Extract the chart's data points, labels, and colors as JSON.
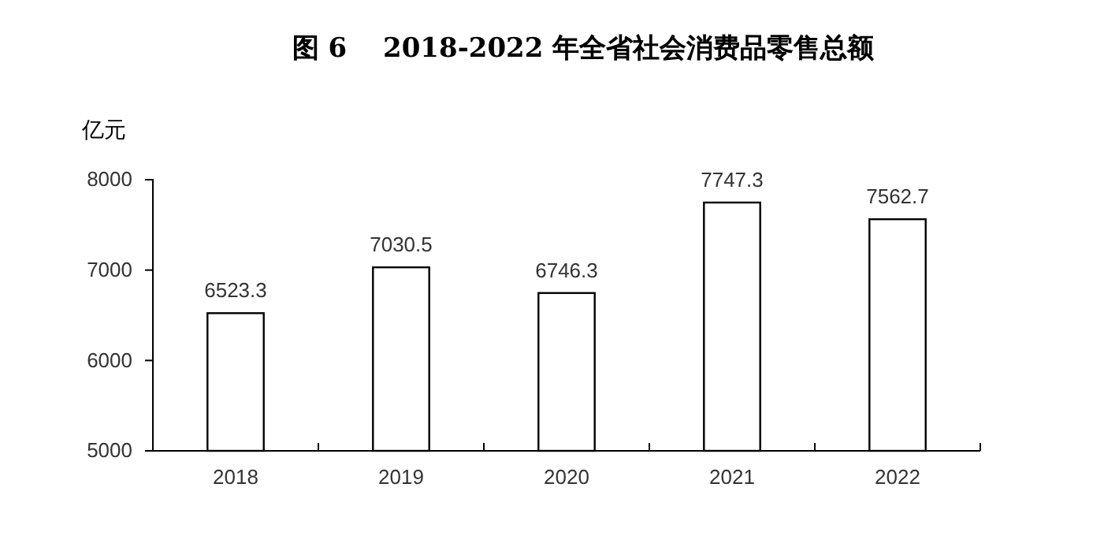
{
  "chart_data": {
    "type": "bar",
    "title": "图 6　 2018-2022 年全省社会消费品零售总额",
    "ylabel": "亿元",
    "categories": [
      "2018",
      "2019",
      "2020",
      "2021",
      "2022"
    ],
    "values": [
      6523.3,
      7030.5,
      6746.3,
      7747.3,
      7562.7
    ],
    "color": "#ffffff",
    "ylim": [
      5000,
      8000
    ],
    "yticks": [
      5000,
      6000,
      7000,
      8000
    ],
    "data_labels": true,
    "grid": false
  }
}
